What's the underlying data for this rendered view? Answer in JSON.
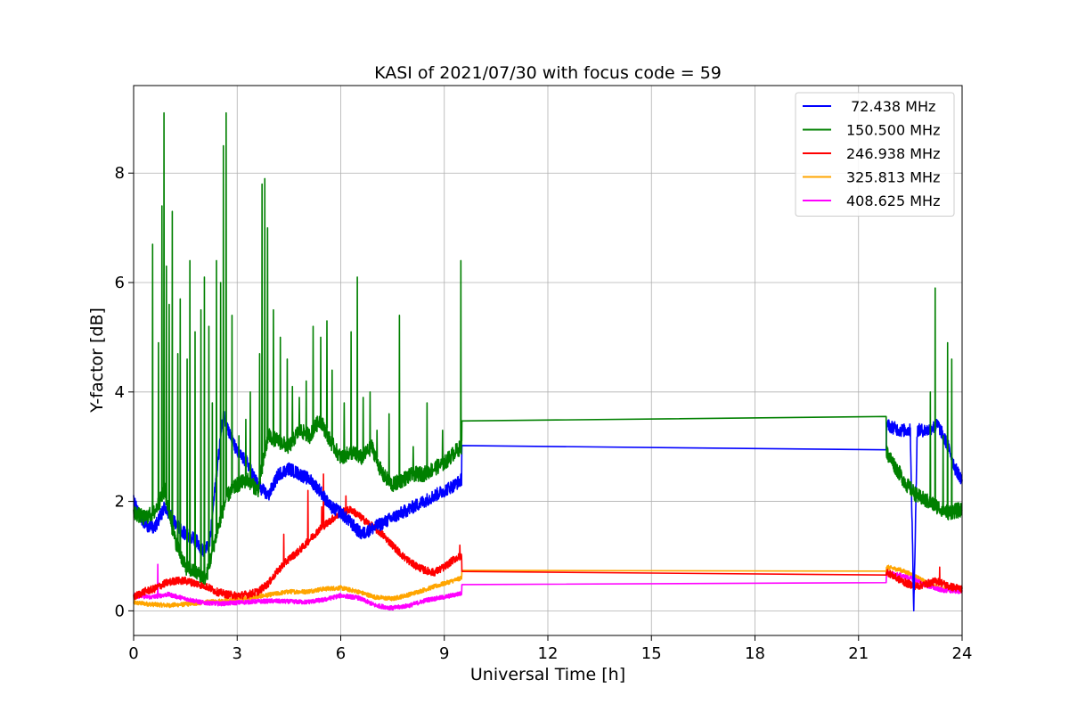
{
  "chart_data": {
    "type": "line",
    "title": "KASI of 2021/07/30 with focus code = 59",
    "xlabel": "Universal Time [h]",
    "ylabel": "Y-factor [dB]",
    "xlim": [
      0,
      24
    ],
    "ylim": [
      -0.45,
      9.6
    ],
    "xticks": [
      0,
      3,
      6,
      9,
      12,
      15,
      18,
      21,
      24
    ],
    "yticks": [
      0,
      2,
      4,
      6,
      8
    ],
    "grid": true,
    "legend_position": "top-right",
    "series": [
      {
        "name": "72.438 MHz",
        "legend_label": " 72.438 MHz",
        "color": "#0000ff",
        "noise": 0.12,
        "x": [
          0,
          0.3,
          0.6,
          0.9,
          1.2,
          1.5,
          1.8,
          2.0,
          2.2,
          2.4,
          2.6,
          2.8,
          3.0,
          3.3,
          3.6,
          3.9,
          4.2,
          4.5,
          4.8,
          5.1,
          5.4,
          5.7,
          6.0,
          6.3,
          6.6,
          6.9,
          7.2,
          7.5,
          7.8,
          8.1,
          8.4,
          8.7,
          9.0,
          9.3,
          9.5,
          9.51,
          21.8,
          21.81,
          22.2,
          22.5,
          22.6,
          22.7,
          23.0,
          23.3,
          23.6,
          23.8,
          24
        ],
        "y": [
          2.0,
          1.6,
          1.5,
          1.9,
          1.6,
          1.4,
          1.3,
          1.1,
          1.2,
          2.5,
          3.6,
          3.2,
          2.9,
          2.7,
          2.3,
          2.1,
          2.5,
          2.6,
          2.5,
          2.4,
          2.2,
          1.9,
          1.8,
          1.6,
          1.4,
          1.5,
          1.6,
          1.7,
          1.8,
          1.9,
          2.0,
          2.1,
          2.2,
          2.3,
          2.4,
          3.02,
          3.06,
          3.4,
          3.3,
          3.3,
          0.0,
          3.3,
          3.3,
          3.4,
          3.0,
          2.6,
          2.4
        ]
      },
      {
        "name": "150.500 MHz",
        "legend_label": "150.500 MHz",
        "color": "#008000",
        "noise": 0.14,
        "x": [
          0,
          0.3,
          0.6,
          0.9,
          1.2,
          1.5,
          1.8,
          2.1,
          2.4,
          2.7,
          3.0,
          3.3,
          3.6,
          3.9,
          4.2,
          4.5,
          4.8,
          5.1,
          5.4,
          5.7,
          6.0,
          6.3,
          6.6,
          6.9,
          7.2,
          7.5,
          7.8,
          8.1,
          8.4,
          8.7,
          9.0,
          9.3,
          9.5,
          9.51,
          21.8,
          21.81,
          22.1,
          22.4,
          22.7,
          23.0,
          23.3,
          23.6,
          24
        ],
        "y": [
          1.8,
          1.7,
          1.8,
          2.2,
          1.3,
          0.8,
          0.7,
          0.6,
          1.4,
          2.1,
          2.3,
          2.4,
          2.2,
          3.2,
          3.1,
          3.0,
          3.3,
          3.2,
          3.5,
          3.1,
          2.8,
          2.9,
          2.8,
          3.0,
          2.5,
          2.3,
          2.4,
          2.5,
          2.5,
          2.6,
          2.7,
          2.9,
          3.0,
          3.47,
          3.49,
          2.9,
          2.6,
          2.3,
          2.1,
          2.0,
          1.9,
          1.8,
          1.85
        ],
        "spikes": [
          {
            "x": 0.55,
            "y": 6.7
          },
          {
            "x": 0.72,
            "y": 4.9
          },
          {
            "x": 0.82,
            "y": 7.4
          },
          {
            "x": 0.88,
            "y": 9.1
          },
          {
            "x": 0.95,
            "y": 6.3
          },
          {
            "x": 1.03,
            "y": 5.6
          },
          {
            "x": 1.12,
            "y": 7.3
          },
          {
            "x": 1.28,
            "y": 4.7
          },
          {
            "x": 1.35,
            "y": 5.7
          },
          {
            "x": 1.55,
            "y": 4.6
          },
          {
            "x": 1.63,
            "y": 6.4
          },
          {
            "x": 1.78,
            "y": 5.1
          },
          {
            "x": 1.95,
            "y": 5.5
          },
          {
            "x": 2.05,
            "y": 6.1
          },
          {
            "x": 2.18,
            "y": 5.2
          },
          {
            "x": 2.28,
            "y": 3.8
          },
          {
            "x": 2.4,
            "y": 6.4
          },
          {
            "x": 2.52,
            "y": 6.0
          },
          {
            "x": 2.6,
            "y": 8.5
          },
          {
            "x": 2.68,
            "y": 9.1
          },
          {
            "x": 2.85,
            "y": 5.4
          },
          {
            "x": 3.05,
            "y": 3.2
          },
          {
            "x": 3.25,
            "y": 3.5
          },
          {
            "x": 3.38,
            "y": 4.0
          },
          {
            "x": 3.65,
            "y": 4.7
          },
          {
            "x": 3.72,
            "y": 7.8
          },
          {
            "x": 3.8,
            "y": 7.9
          },
          {
            "x": 3.88,
            "y": 7.0
          },
          {
            "x": 4.05,
            "y": 5.5
          },
          {
            "x": 4.25,
            "y": 5.0
          },
          {
            "x": 4.45,
            "y": 4.6
          },
          {
            "x": 4.6,
            "y": 4.1
          },
          {
            "x": 4.8,
            "y": 3.9
          },
          {
            "x": 5.0,
            "y": 4.2
          },
          {
            "x": 5.2,
            "y": 5.2
          },
          {
            "x": 5.42,
            "y": 5.0
          },
          {
            "x": 5.6,
            "y": 5.3
          },
          {
            "x": 5.75,
            "y": 4.4
          },
          {
            "x": 6.1,
            "y": 3.8
          },
          {
            "x": 6.3,
            "y": 5.1
          },
          {
            "x": 6.48,
            "y": 6.1
          },
          {
            "x": 6.65,
            "y": 3.9
          },
          {
            "x": 6.85,
            "y": 4.0
          },
          {
            "x": 7.05,
            "y": 3.3
          },
          {
            "x": 7.4,
            "y": 3.6
          },
          {
            "x": 7.7,
            "y": 5.4
          },
          {
            "x": 8.1,
            "y": 3.0
          },
          {
            "x": 8.5,
            "y": 3.8
          },
          {
            "x": 8.95,
            "y": 3.3
          },
          {
            "x": 9.48,
            "y": 6.4
          },
          {
            "x": 23.08,
            "y": 4.0
          },
          {
            "x": 23.22,
            "y": 5.9
          },
          {
            "x": 23.45,
            "y": 3.2
          },
          {
            "x": 23.58,
            "y": 4.9
          },
          {
            "x": 23.7,
            "y": 4.6
          }
        ]
      },
      {
        "name": "246.938 MHz",
        "legend_label": "246.938 MHz",
        "color": "#ff0000",
        "noise": 0.07,
        "x": [
          0,
          0.3,
          0.6,
          0.9,
          1.2,
          1.5,
          1.8,
          2.1,
          2.4,
          2.7,
          3.0,
          3.3,
          3.6,
          3.9,
          4.2,
          4.5,
          4.8,
          5.1,
          5.4,
          5.7,
          6.0,
          6.3,
          6.6,
          6.9,
          7.2,
          7.5,
          7.8,
          8.1,
          8.4,
          8.7,
          9.0,
          9.3,
          9.5,
          9.51,
          21.8,
          21.81,
          22.1,
          22.4,
          22.7,
          23.0,
          23.3,
          23.6,
          24
        ],
        "y": [
          0.25,
          0.35,
          0.4,
          0.5,
          0.55,
          0.55,
          0.5,
          0.45,
          0.35,
          0.3,
          0.28,
          0.3,
          0.35,
          0.5,
          0.75,
          0.95,
          1.1,
          1.3,
          1.5,
          1.65,
          1.8,
          1.85,
          1.7,
          1.55,
          1.4,
          1.2,
          1.0,
          0.85,
          0.75,
          0.7,
          0.8,
          0.95,
          1.0,
          0.72,
          0.72,
          0.72,
          0.6,
          0.5,
          0.45,
          0.5,
          0.55,
          0.45,
          0.4
        ],
        "spikes": [
          {
            "x": 4.35,
            "y": 1.4
          },
          {
            "x": 5.05,
            "y": 2.2
          },
          {
            "x": 5.45,
            "y": 1.9
          },
          {
            "x": 5.5,
            "y": 2.5
          },
          {
            "x": 6.15,
            "y": 2.1
          },
          {
            "x": 9.45,
            "y": 1.2
          },
          {
            "x": 23.35,
            "y": 0.8
          }
        ]
      },
      {
        "name": "325.813 MHz",
        "legend_label": "325.813 MHz",
        "color": "#ffa500",
        "noise": 0.04,
        "x": [
          0,
          0.5,
          1.0,
          1.5,
          2.0,
          2.5,
          3.0,
          3.5,
          4.0,
          4.5,
          5.0,
          5.5,
          6.0,
          6.5,
          7.0,
          7.5,
          8.0,
          8.5,
          9.0,
          9.5,
          9.51,
          21.8,
          21.81,
          22.2,
          22.6,
          23.0,
          23.4,
          24
        ],
        "y": [
          0.15,
          0.12,
          0.1,
          0.12,
          0.15,
          0.18,
          0.2,
          0.25,
          0.3,
          0.35,
          0.35,
          0.4,
          0.42,
          0.35,
          0.25,
          0.22,
          0.3,
          0.4,
          0.5,
          0.6,
          0.74,
          0.74,
          0.8,
          0.75,
          0.65,
          0.5,
          0.4,
          0.38
        ]
      },
      {
        "name": "408.625 MHz",
        "legend_label": "408.625 MHz",
        "color": "#ff00ff",
        "noise": 0.04,
        "x": [
          0,
          0.5,
          1.0,
          1.5,
          2.0,
          2.5,
          3.0,
          3.5,
          4.0,
          4.5,
          5.0,
          5.5,
          6.0,
          6.5,
          7.0,
          7.5,
          8.0,
          8.5,
          9.0,
          9.5,
          9.51,
          21.8,
          21.81,
          22.2,
          22.6,
          23.0,
          23.4,
          24
        ],
        "y": [
          0.28,
          0.25,
          0.3,
          0.22,
          0.15,
          0.13,
          0.15,
          0.17,
          0.18,
          0.17,
          0.16,
          0.2,
          0.28,
          0.24,
          0.1,
          0.05,
          0.1,
          0.2,
          0.25,
          0.32,
          0.48,
          0.48,
          0.7,
          0.65,
          0.58,
          0.45,
          0.38,
          0.35
        ],
        "spikes": [
          {
            "x": 0.7,
            "y": 0.85
          }
        ]
      }
    ]
  }
}
